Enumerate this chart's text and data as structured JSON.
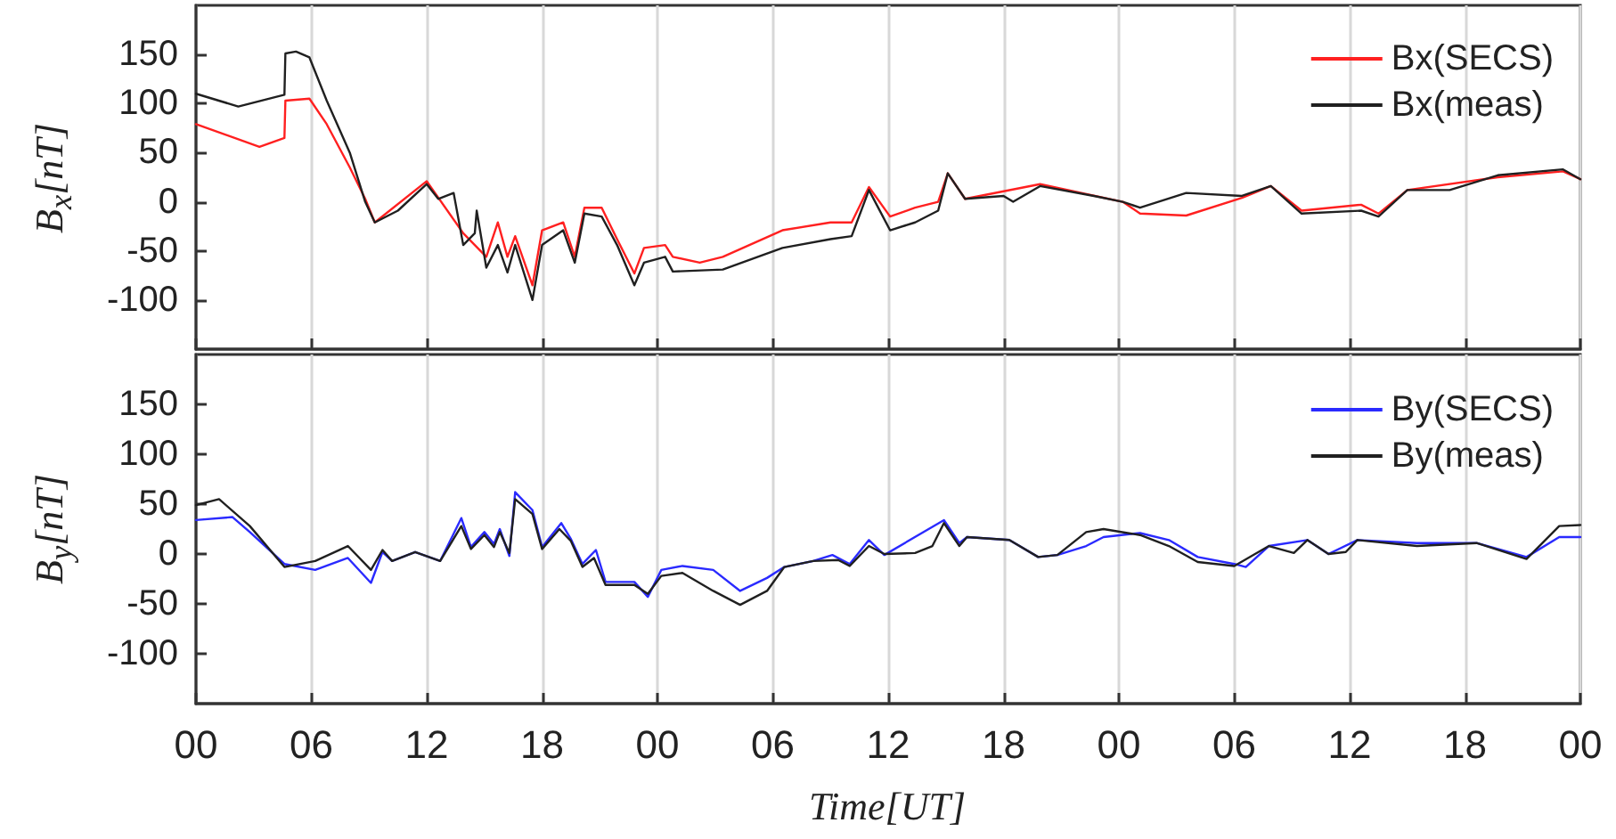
{
  "chart_data": [
    {
      "type": "line",
      "ylabel": "B$_{x}$[nT]",
      "xlim": [
        0,
        72
      ],
      "ylim": [
        -150,
        200
      ],
      "yticks": [
        -100,
        -50,
        0,
        50,
        100,
        150
      ],
      "xticks": [
        {
          "value": 0,
          "label": null
        },
        {
          "value": 6,
          "label": null
        },
        {
          "value": 12,
          "label": null
        },
        {
          "value": 18,
          "label": null
        },
        {
          "value": 24,
          "label": null
        },
        {
          "value": 30,
          "label": null
        },
        {
          "value": 36,
          "label": null
        },
        {
          "value": 42,
          "label": null
        },
        {
          "value": 48,
          "label": null
        },
        {
          "value": 54,
          "label": null
        },
        {
          "value": 60,
          "label": null
        },
        {
          "value": 66,
          "label": null
        },
        {
          "value": 72,
          "label": null
        }
      ],
      "tick_labels": "y",
      "grid": "x",
      "legend": "top right",
      "marker": "none",
      "line_style": "solid",
      "series": [
        {
          "name": "Bx(SECS)",
          "color": "#ff2020",
          "x": [
            0,
            3.3,
            4.6,
            4.65,
            5.9,
            6.8,
            8.0,
            8.8,
            9.3,
            12.0,
            13.9,
            15.1,
            15.7,
            16.2,
            16.6,
            17.5,
            18.0,
            19.1,
            19.7,
            20.2,
            21.1,
            21.9,
            22.8,
            23.3,
            24.4,
            24.8,
            26.2,
            27.4,
            30.5,
            33.0,
            34.1,
            35.0,
            36.1,
            37.4,
            38.6,
            39.1,
            40.0,
            43.9,
            48.2,
            49.1,
            51.5,
            54.4,
            55.9,
            57.5,
            60.6,
            61.5,
            63.0,
            67.7,
            71.1,
            72
          ],
          "values": [
            79,
            56,
            65,
            103,
            105,
            79,
            35,
            3,
            -21,
            21,
            -32,
            -56,
            -21,
            -56,
            -35,
            -85,
            -29,
            -21,
            -56,
            -6,
            -6,
            -38,
            -73,
            -47,
            -44,
            -56,
            -62,
            -56,
            -29,
            -21,
            -21,
            15,
            -15,
            -6,
            0,
            29,
            3,
            18,
            0,
            -12,
            -14,
            4,
            16,
            -9,
            -3,
            -12,
            12,
            25,
            31,
            23
          ]
        },
        {
          "name": "Bx(meas)",
          "color": "#202020",
          "x": [
            0,
            2.2,
            4.6,
            4.65,
            5.2,
            5.9,
            6.8,
            8.0,
            8.8,
            9.3,
            10.5,
            12.0,
            12.6,
            13.4,
            13.9,
            14.5,
            14.6,
            15.1,
            15.7,
            16.2,
            16.6,
            17.5,
            18.0,
            19.1,
            19.7,
            20.2,
            21.1,
            21.9,
            22.8,
            23.3,
            24.4,
            24.8,
            27.4,
            30.5,
            33.0,
            34.1,
            35.0,
            36.1,
            37.4,
            38.6,
            39.1,
            40.0,
            42.0,
            42.5,
            43.9,
            46.7,
            48.2,
            49.1,
            51.5,
            54.4,
            55.9,
            57.5,
            60.6,
            61.5,
            63.0,
            65.2,
            67.7,
            71.1,
            72
          ],
          "values": [
            110,
            97,
            109,
            151,
            153,
            147,
            103,
            50,
            0,
            -21,
            -9,
            18,
            3,
            9,
            -44,
            -32,
            -9,
            -67,
            -44,
            -72,
            -44,
            -100,
            -44,
            -29,
            -62,
            -12,
            -15,
            -44,
            -85,
            -62,
            -56,
            -71,
            -69,
            -47,
            -38,
            -35,
            12,
            -29,
            -21,
            -9,
            29,
            3,
            6,
            0,
            16,
            6,
            0,
            -6,
            9,
            6,
            16,
            -12,
            -9,
            -15,
            12,
            12,
            27,
            33,
            23
          ]
        }
      ]
    },
    {
      "type": "line",
      "ylabel": "B$_{y}$[nT]",
      "xlabel": "Time[UT]",
      "xlim": [
        0,
        72
      ],
      "ylim": [
        -150,
        200
      ],
      "yticks": [
        -100,
        -50,
        0,
        50,
        100,
        150
      ],
      "xticks": [
        {
          "value": 0,
          "label": "00"
        },
        {
          "value": 6,
          "label": "06"
        },
        {
          "value": 12,
          "label": "12"
        },
        {
          "value": 18,
          "label": "18"
        },
        {
          "value": 24,
          "label": "00"
        },
        {
          "value": 30,
          "label": "06"
        },
        {
          "value": 36,
          "label": "12"
        },
        {
          "value": 42,
          "label": "18"
        },
        {
          "value": 48,
          "label": "00"
        },
        {
          "value": 54,
          "label": "06"
        },
        {
          "value": 60,
          "label": "12"
        },
        {
          "value": 66,
          "label": "18"
        },
        {
          "value": 72,
          "label": "00"
        }
      ],
      "grid": "x",
      "legend": "top right",
      "marker": "none",
      "line_style": "solid",
      "series": [
        {
          "name": "By(SECS)",
          "color": "#2a2aff",
          "x": [
            0,
            1.9,
            2.8,
            4.6,
            6.2,
            7.9,
            9.1,
            9.7,
            10.2,
            11.4,
            12.7,
            13.8,
            14.3,
            15.0,
            15.5,
            15.8,
            16.3,
            16.6,
            17.5,
            18.0,
            19.0,
            19.5,
            20.1,
            20.8,
            21.3,
            22.8,
            23.5,
            24.2,
            25.3,
            26.9,
            28.3,
            29.7,
            30.6,
            32.1,
            33.1,
            34.0,
            35.0,
            35.8,
            38.9,
            39.7,
            40.1,
            42.3,
            43.8,
            44.8,
            46.3,
            47.2,
            49.1,
            50.6,
            52.1,
            54.0,
            54.6,
            55.8,
            57.8,
            58.9,
            60.4,
            63.5,
            66.6,
            69.2,
            70.9,
            72
          ],
          "values": [
            34,
            37,
            22,
            -10,
            -16,
            -4,
            -29,
            2,
            -7,
            2,
            -7,
            36,
            7,
            22,
            10,
            25,
            -2,
            62,
            44,
            7,
            31,
            15,
            -10,
            4,
            -28,
            -28,
            -43,
            -16,
            -12,
            -16,
            -37,
            -24,
            -13,
            -7,
            -1,
            -10,
            14,
            -1,
            34,
            11,
            17,
            14,
            -3,
            -1,
            8,
            17,
            21,
            14,
            -3,
            -10,
            -13,
            8,
            14,
            0,
            14,
            11,
            11,
            -3,
            17,
            17
          ]
        },
        {
          "name": "By(meas)",
          "color": "#202020",
          "x": [
            0,
            1.2,
            2.8,
            4.6,
            6.2,
            7.9,
            9.1,
            9.7,
            10.2,
            11.4,
            12.7,
            13.8,
            14.3,
            15.0,
            15.5,
            15.8,
            16.3,
            16.6,
            17.5,
            18.0,
            18.9,
            19.5,
            20.1,
            20.7,
            21.3,
            22.8,
            23.5,
            24.2,
            25.3,
            26.9,
            28.3,
            29.7,
            30.6,
            32.1,
            33.4,
            34.0,
            35.0,
            35.8,
            37.4,
            38.3,
            38.9,
            39.7,
            40.1,
            42.3,
            43.8,
            44.8,
            46.3,
            47.2,
            49.1,
            50.6,
            52.1,
            54.0,
            55.8,
            57.1,
            57.8,
            58.9,
            59.8,
            60.4,
            63.5,
            66.6,
            69.2,
            70.9,
            72
          ],
          "values": [
            49,
            55,
            28,
            -13,
            -7,
            8,
            -16,
            4,
            -7,
            2,
            -7,
            28,
            5,
            19,
            7,
            22,
            1,
            55,
            40,
            5,
            25,
            13,
            -13,
            -4,
            -31,
            -31,
            -40,
            -22,
            -19,
            -37,
            -51,
            -37,
            -13,
            -7,
            -6,
            -12,
            8,
            0,
            1,
            8,
            31,
            8,
            17,
            14,
            -3,
            -1,
            22,
            25,
            19,
            8,
            -8,
            -12,
            8,
            1,
            14,
            0,
            2,
            14,
            8,
            11,
            -5,
            28,
            29
          ]
        }
      ]
    }
  ]
}
